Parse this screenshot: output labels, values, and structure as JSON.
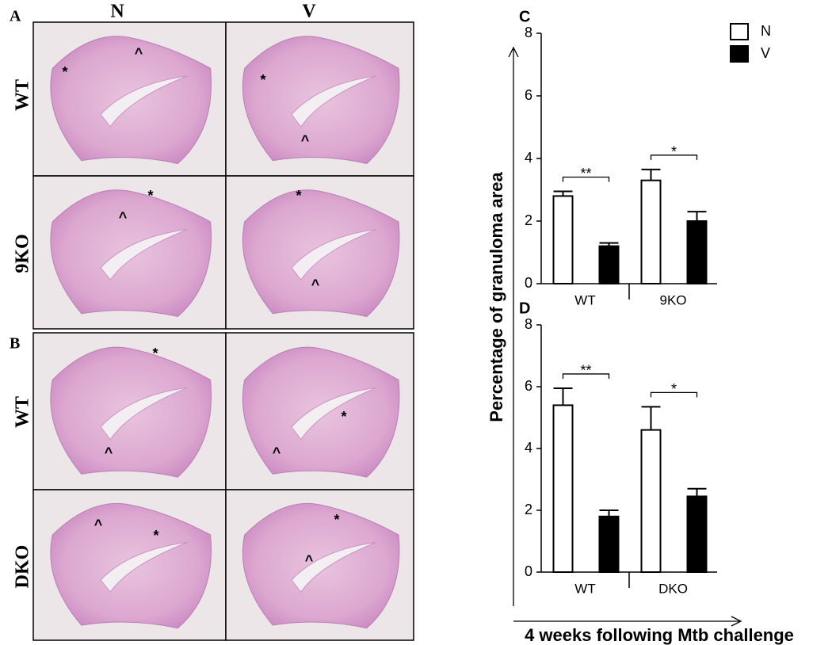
{
  "figure": {
    "panel_a": "A",
    "panel_b": "B",
    "column_labels": [
      "N",
      "V"
    ],
    "rows_a": [
      "WT",
      "9KO"
    ],
    "rows_b": [
      "WT",
      "DKO"
    ],
    "image_markers": [
      [
        "*",
        "^"
      ],
      [
        "*",
        "^"
      ],
      [
        "*",
        "^"
      ],
      [
        "*",
        "^"
      ],
      [
        "*",
        "^"
      ],
      [
        "*",
        "^"
      ],
      [
        "^",
        "*"
      ],
      [
        "*",
        "^"
      ]
    ],
    "y_label": "Percentage of granuloma area",
    "x_label": "4 weeks following Mtb challenge"
  },
  "chart_data": [
    {
      "type": "bar",
      "panel": "C",
      "categories": [
        "WT",
        "9KO"
      ],
      "series": [
        {
          "name": "N",
          "color": "#ffffff",
          "values": [
            2.8,
            3.3
          ],
          "errors": [
            0.15,
            0.35
          ]
        },
        {
          "name": "V",
          "color": "#000000",
          "values": [
            1.2,
            2.0
          ],
          "errors": [
            0.1,
            0.3
          ]
        }
      ],
      "significance": [
        "**",
        "*"
      ],
      "ylim": [
        0,
        8
      ],
      "yticks": [
        0,
        2,
        4,
        6,
        8
      ]
    },
    {
      "type": "bar",
      "panel": "D",
      "categories": [
        "WT",
        "DKO"
      ],
      "series": [
        {
          "name": "N",
          "color": "#ffffff",
          "values": [
            5.4,
            4.6
          ],
          "errors": [
            0.55,
            0.75
          ]
        },
        {
          "name": "V",
          "color": "#000000",
          "values": [
            1.8,
            2.45
          ],
          "errors": [
            0.2,
            0.25
          ]
        }
      ],
      "significance": [
        "**",
        "*"
      ],
      "ylim": [
        0,
        8
      ],
      "yticks": [
        0,
        2,
        4,
        6,
        8
      ]
    }
  ]
}
